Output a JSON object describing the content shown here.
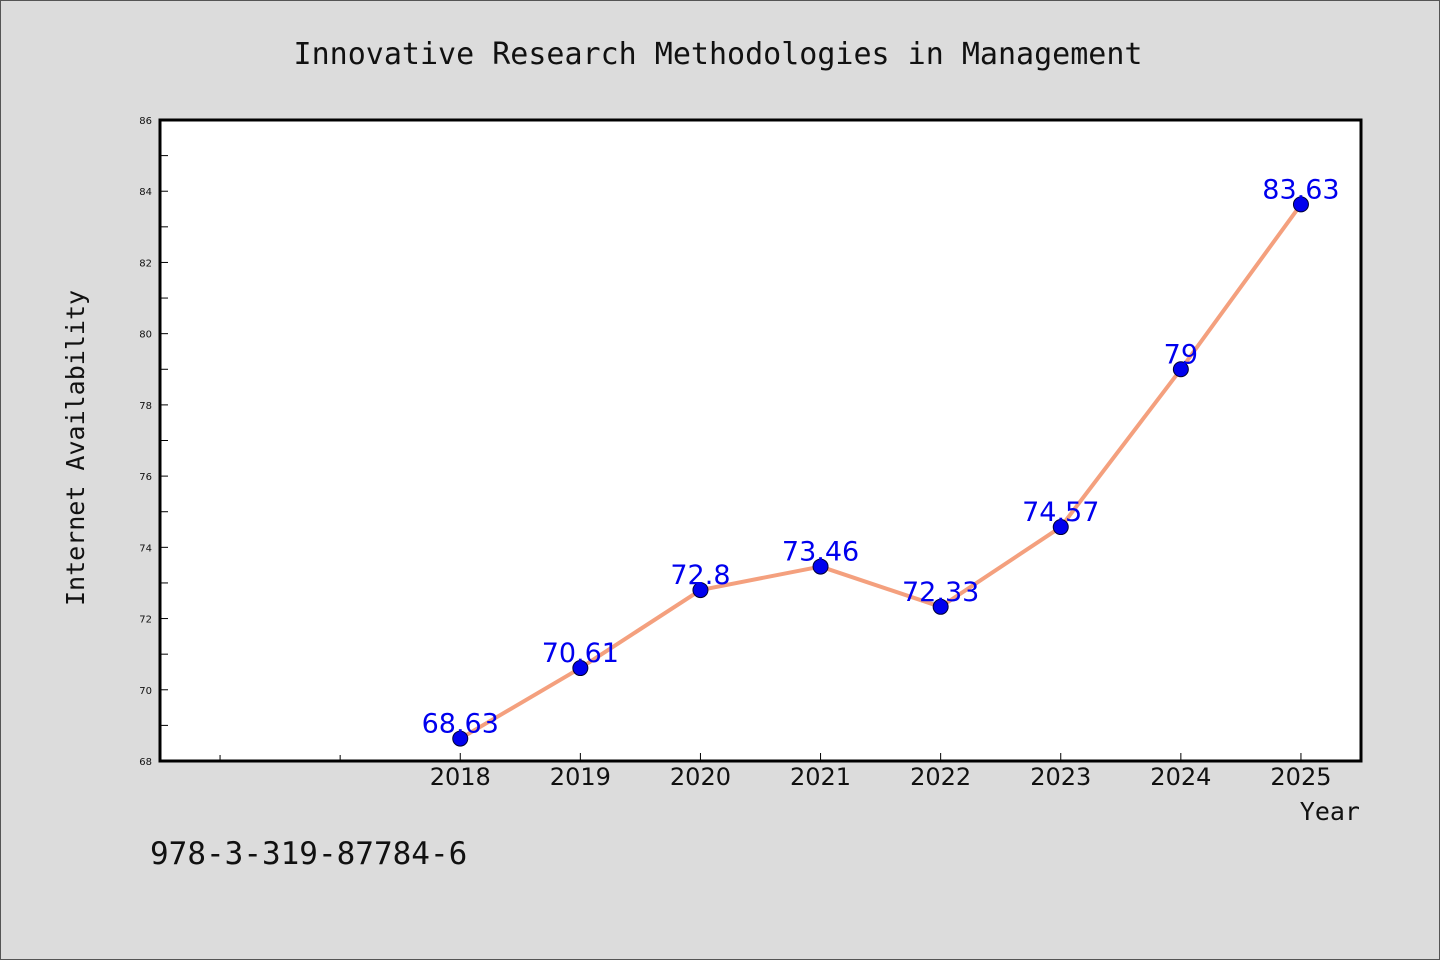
{
  "chart_data": {
    "type": "line",
    "title": "Innovative Research Methodologies in Management",
    "xlabel": "Year",
    "ylabel": "Internet Availability",
    "x": [
      "2018",
      "2019",
      "2020",
      "2021",
      "2022",
      "2023",
      "2024",
      "2025"
    ],
    "xlim": [
      2015.5,
      2025.5
    ],
    "ylim": [
      68,
      86
    ],
    "yticks": [
      "68",
      "70",
      "72",
      "74",
      "76",
      "78",
      "80",
      "82",
      "84",
      "86"
    ],
    "series": [
      {
        "values": [
          68.63,
          70.61,
          72.8,
          73.46,
          72.33,
          74.57,
          79,
          83.63
        ],
        "labels": [
          "68.63",
          "70.61",
          "72.8",
          "73.46",
          "72.33",
          "74.57",
          "79",
          "83.63"
        ],
        "line_color": "#f4a07e",
        "marker_color": "#0000ee",
        "label_color": "#0000ee"
      }
    ],
    "grid": false,
    "legend": "none"
  },
  "footnote": "978-3-319-87784-6"
}
